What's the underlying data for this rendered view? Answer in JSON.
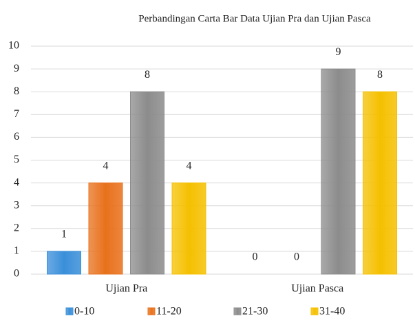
{
  "chart_data": {
    "type": "bar",
    "title": "Perbandingan Carta Bar Data Ujian Pra dan Ujian Pasca",
    "categories": [
      "Ujian Pra",
      "Ujian Pasca"
    ],
    "series": [
      {
        "name": "0-10",
        "color": "#3a8fd9",
        "values": [
          1,
          0
        ]
      },
      {
        "name": "11-20",
        "color": "#e8711c",
        "values": [
          4,
          0
        ]
      },
      {
        "name": "21-30",
        "color": "#8c8c8c",
        "values": [
          8,
          9
        ]
      },
      {
        "name": "31-40",
        "color": "#f5c000",
        "values": [
          4,
          8
        ]
      }
    ],
    "ylim": [
      0,
      10
    ],
    "yticks": [
      0,
      1,
      2,
      3,
      4,
      5,
      6,
      7,
      8,
      9,
      10
    ],
    "grid": true,
    "legend": "bottom",
    "data_labels": true
  }
}
